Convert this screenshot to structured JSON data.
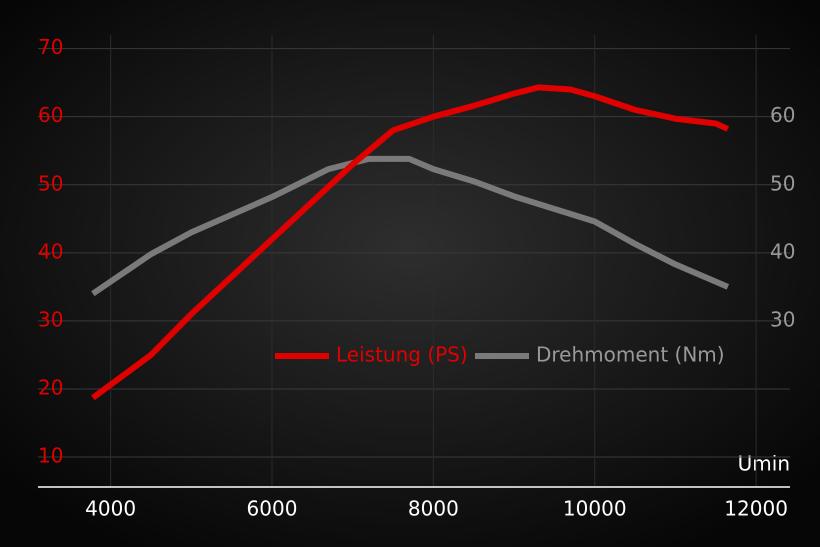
{
  "chart_data": {
    "type": "line",
    "x_label": "Umin",
    "xlim": [
      3100,
      12420
    ],
    "xticks": [
      4000,
      6000,
      8000,
      10000,
      12000
    ],
    "ylim": [
      5.6,
      72
    ],
    "yticks": [
      10,
      20,
      30,
      40,
      50,
      60,
      70
    ],
    "y2lim": [
      5.6,
      72
    ],
    "y2ticks": [
      30,
      40,
      50,
      60
    ],
    "grid": true,
    "legend": "center",
    "series": [
      {
        "name": "Leistung (PS)",
        "color": "#e00000",
        "x": [
          3780,
          4500,
          5000,
          6000,
          7000,
          7500,
          8000,
          8500,
          9000,
          9300,
          9700,
          10000,
          10500,
          11000,
          11500,
          11650
        ],
        "values": [
          18.7,
          25,
          31,
          42,
          53,
          58,
          60,
          61.6,
          63.4,
          64.3,
          64,
          63,
          61,
          59.7,
          59,
          58.2
        ]
      },
      {
        "name": "Drehmoment (Nm)",
        "color": "#7a7a7a",
        "axis": "y2",
        "x": [
          3780,
          4500,
          5000,
          6000,
          6700,
          7200,
          7700,
          8000,
          8500,
          9000,
          10000,
          10500,
          11000,
          11650
        ],
        "values": [
          34,
          39.8,
          43,
          48.2,
          52.3,
          53.8,
          53.8,
          52.3,
          50.5,
          48.3,
          44.6,
          41.3,
          38.3,
          35
        ]
      }
    ]
  }
}
